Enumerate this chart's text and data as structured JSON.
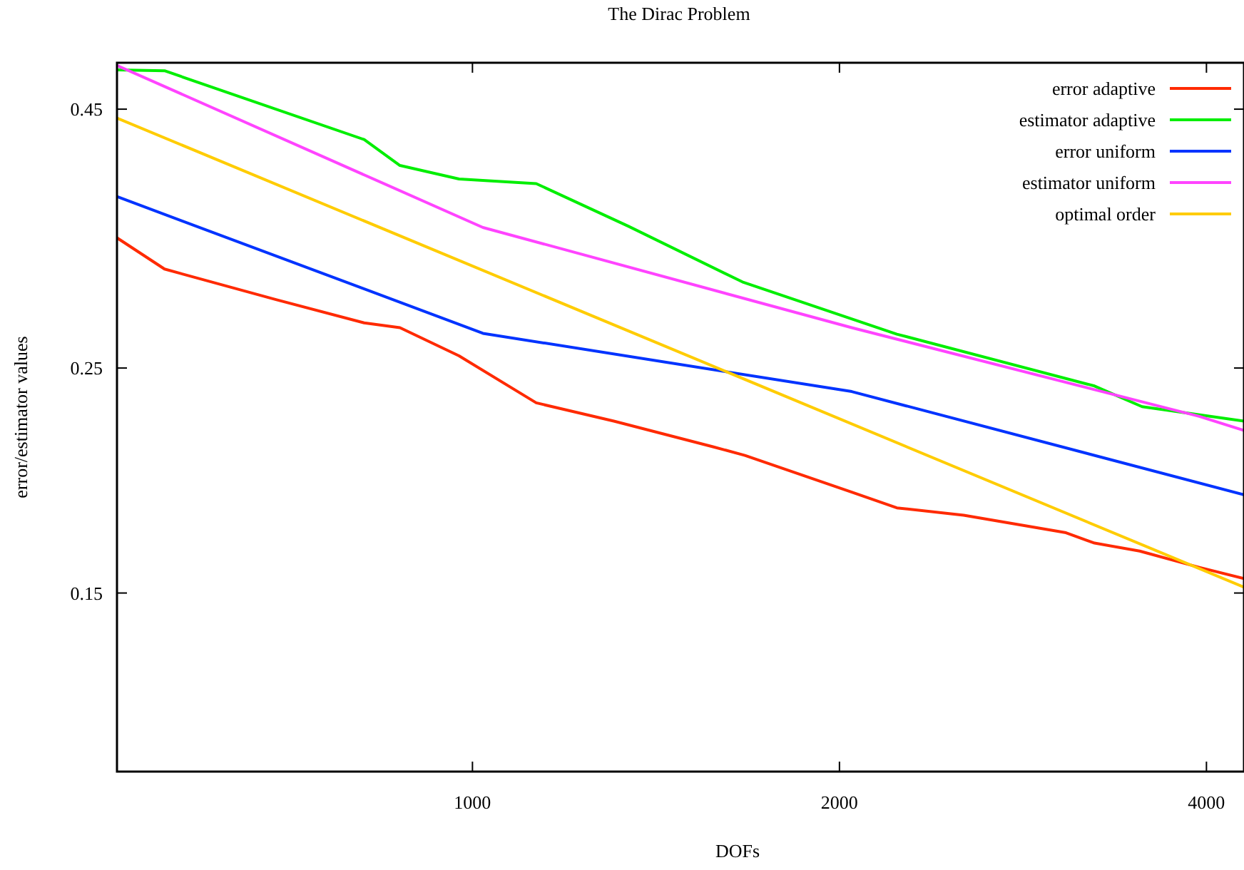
{
  "chart_data": {
    "type": "line",
    "title": "The Dirac Problem",
    "xlabel": "DOFs",
    "ylabel": "error/estimator values",
    "log": "xy",
    "xlim": [
      511,
      4294
    ],
    "xticks": [
      1000,
      2000,
      4000
    ],
    "ylim": [
      0.1,
      0.5
    ],
    "yticks": [
      0.15,
      0.25,
      0.45
    ],
    "legend": "top right",
    "grid": false,
    "series": [
      {
        "name": "error adaptive",
        "color": "#ff2a00",
        "x": [
          511,
          559,
          690,
          815,
          872,
          975,
          1128,
          1306,
          1577,
          1673,
          2047,
          2229,
          2529,
          3068,
          3238,
          3526,
          3946,
          4294
        ],
        "values": [
          0.336,
          0.313,
          0.292,
          0.277,
          0.274,
          0.257,
          0.231,
          0.2216,
          0.209,
          0.205,
          0.1886,
          0.182,
          0.179,
          0.172,
          0.168,
          0.165,
          0.159,
          0.155
        ]
      },
      {
        "name": "estimator adaptive",
        "color": "#00ee00",
        "x": [
          511,
          559,
          815,
          872,
          975,
          1128,
          1342,
          1665,
          2229,
          3238,
          3542,
          4294
        ],
        "values": [
          0.492,
          0.491,
          0.42,
          0.396,
          0.384,
          0.38,
          0.345,
          0.304,
          0.27,
          0.24,
          0.229,
          0.2216
        ]
      },
      {
        "name": "error uniform",
        "color": "#0033ff",
        "x": [
          511,
          1020,
          2047,
          4294
        ],
        "values": [
          0.369,
          0.2705,
          0.237,
          0.1875
        ]
      },
      {
        "name": "estimator uniform",
        "color": "#ff44ff",
        "x": [
          511,
          1020,
          2047,
          3946,
          4294
        ],
        "values": [
          0.497,
          0.344,
          0.274,
          0.224,
          0.217
        ]
      },
      {
        "name": "optimal order",
        "color": "#ffcc00",
        "x": [
          511,
          4294
        ],
        "values": [
          0.441,
          0.152
        ]
      }
    ]
  }
}
